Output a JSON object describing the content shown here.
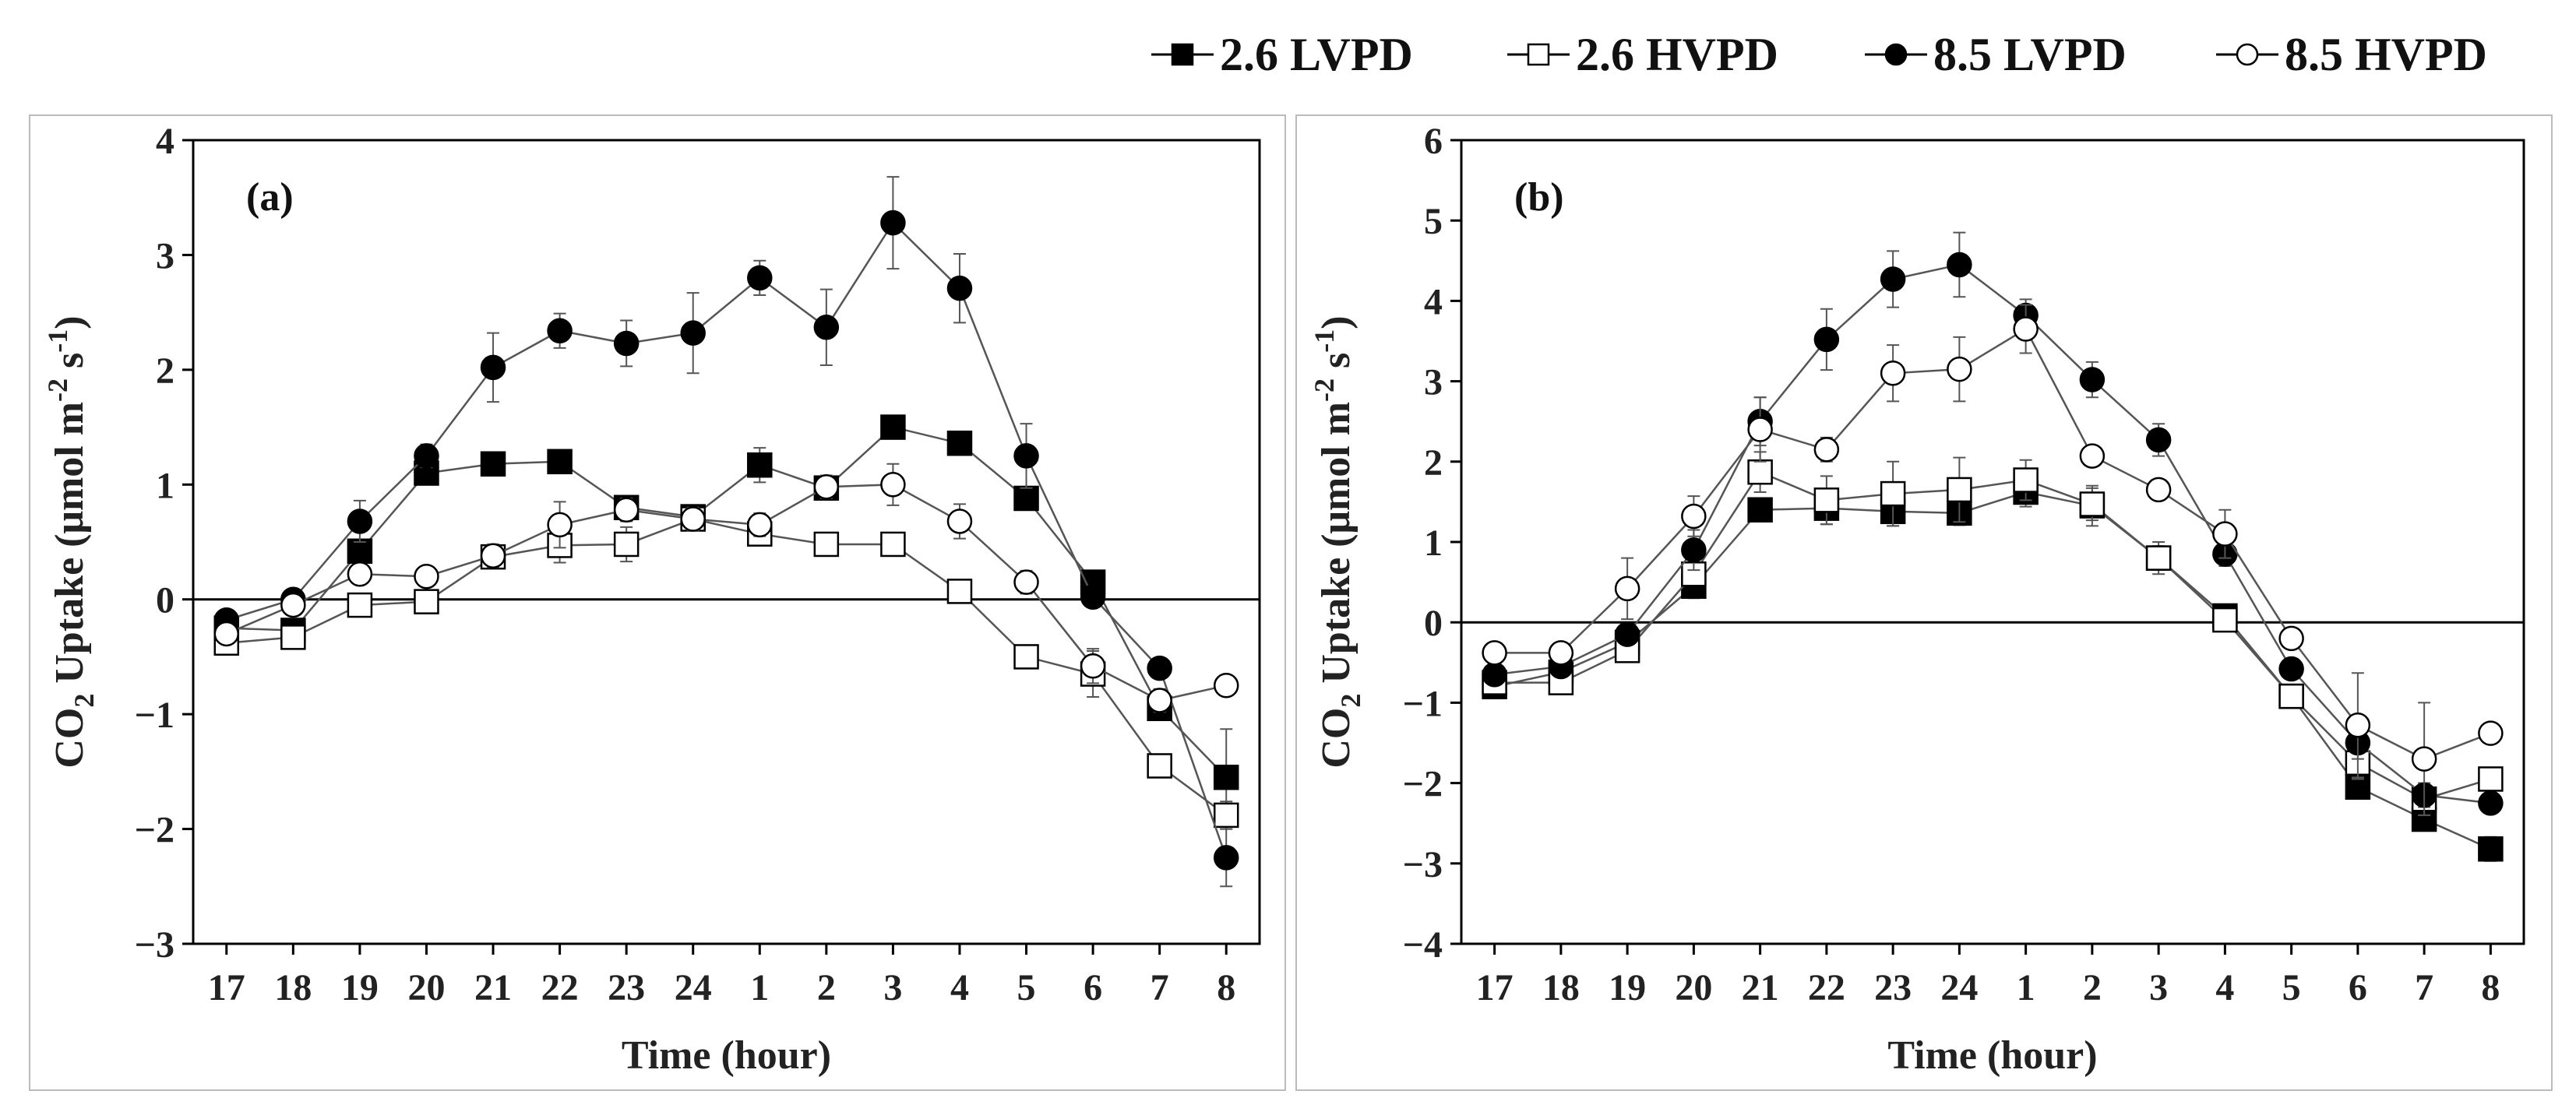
{
  "legend": [
    {
      "label": "2.6 LVPD",
      "marker": "square",
      "filled": true
    },
    {
      "label": "2.6 HVPD",
      "marker": "square",
      "filled": false
    },
    {
      "label": "8.5 LVPD",
      "marker": "circle",
      "filled": true
    },
    {
      "label": "8.5 HVPD",
      "marker": "circle",
      "filled": false
    }
  ],
  "colors": {
    "series": "#000000",
    "line": "#555555",
    "frame": "#000000",
    "panel_border": "#bbbbbb"
  },
  "chart_data": [
    {
      "type": "line",
      "panel_label": "(a)",
      "title": "",
      "xlabel": "Time (hour)",
      "ylabel_main": "CO",
      "ylabel_sub": "2",
      "ylabel_rest": " Uptake (μmol m",
      "ylabel_sup1": "-2",
      "ylabel_mid": " s",
      "ylabel_sup2": "-1",
      "ylabel_end": ")",
      "categories": [
        "17",
        "18",
        "19",
        "20",
        "21",
        "22",
        "23",
        "24",
        "1",
        "2",
        "3",
        "4",
        "5",
        "6",
        "7",
        "8"
      ],
      "ylim": [
        -3,
        4
      ],
      "yticks": [
        -3,
        -2,
        -1,
        0,
        1,
        2,
        3,
        4
      ],
      "ytick_labels": [
        "−3",
        "−2",
        "−1",
        "0",
        "1",
        "2",
        "3",
        "4"
      ],
      "series": [
        {
          "name": "2.6 LVPD",
          "values": [
            -0.25,
            -0.27,
            0.42,
            1.1,
            1.18,
            1.2,
            0.8,
            0.72,
            1.17,
            0.97,
            1.5,
            1.36,
            0.88,
            0.15,
            -0.95,
            -1.55
          ],
          "errors": [
            0.05,
            0.05,
            0.1,
            0.1,
            0.08,
            0.05,
            0.1,
            0.1,
            0.15,
            0.1,
            0.08,
            0.08,
            0.08,
            0.05,
            0.1,
            0.42
          ]
        },
        {
          "name": "2.6 HVPD",
          "values": [
            -0.38,
            -0.33,
            -0.05,
            -0.02,
            0.37,
            0.47,
            0.48,
            0.7,
            0.57,
            0.48,
            0.48,
            0.07,
            -0.5,
            -0.65,
            -1.45,
            -1.88
          ],
          "errors": [
            0.05,
            0.05,
            0.05,
            0.05,
            0.1,
            0.15,
            0.15,
            0.1,
            0.08,
            0.1,
            0.08,
            0.05,
            0.1,
            0.2,
            0.1,
            0.12
          ]
        },
        {
          "name": "8.5 LVPD",
          "values": [
            -0.18,
            0.0,
            0.68,
            1.25,
            2.02,
            2.34,
            2.23,
            2.32,
            2.8,
            2.37,
            3.28,
            2.71,
            1.25,
            0.02,
            -0.6,
            -2.25
          ],
          "errors": [
            0.05,
            0.05,
            0.18,
            0.1,
            0.3,
            0.15,
            0.2,
            0.35,
            0.15,
            0.33,
            0.4,
            0.3,
            0.28,
            0.05,
            0.05,
            0.25
          ]
        },
        {
          "name": "8.5 HVPD",
          "values": [
            -0.3,
            -0.05,
            0.22,
            0.2,
            0.38,
            0.65,
            0.78,
            0.7,
            0.65,
            0.98,
            1.0,
            0.68,
            0.15,
            -0.58,
            -0.88,
            -0.75
          ],
          "errors": [
            0.05,
            0.05,
            0.05,
            0.05,
            0.1,
            0.2,
            0.1,
            0.1,
            0.1,
            0.1,
            0.18,
            0.15,
            0.1,
            0.15,
            0.1,
            0.08
          ]
        }
      ]
    },
    {
      "type": "line",
      "panel_label": "(b)",
      "title": "",
      "xlabel": "Time (hour)",
      "ylabel_main": "CO",
      "ylabel_sub": "2",
      "ylabel_rest": " Uptake (μmol m",
      "ylabel_sup1": "-2",
      "ylabel_mid": " s",
      "ylabel_sup2": "-1",
      "ylabel_end": ")",
      "categories": [
        "17",
        "18",
        "19",
        "20",
        "21",
        "22",
        "23",
        "24",
        "1",
        "2",
        "3",
        "4",
        "5",
        "6",
        "7",
        "8"
      ],
      "ylim": [
        -4,
        6
      ],
      "yticks": [
        -4,
        -3,
        -2,
        -1,
        0,
        1,
        2,
        3,
        4,
        5,
        6
      ],
      "ytick_labels": [
        "−4",
        "−3",
        "−2",
        "−1",
        "0",
        "1",
        "2",
        "3",
        "4",
        "5",
        "6"
      ],
      "series": [
        {
          "name": "2.6 LVPD",
          "values": [
            -0.8,
            -0.62,
            -0.25,
            0.45,
            1.4,
            1.42,
            1.38,
            1.36,
            1.62,
            1.45,
            0.8,
            0.08,
            -0.92,
            -2.05,
            -2.45,
            -2.82
          ],
          "errors": [
            0.05,
            0.05,
            0.05,
            0.15,
            0.12,
            0.2,
            0.18,
            0.15,
            0.18,
            0.25,
            0.2,
            0.08,
            0.1,
            0.08,
            0.1,
            0.15
          ]
        },
        {
          "name": "2.6 HVPD",
          "values": [
            -0.75,
            -0.75,
            -0.35,
            0.6,
            1.87,
            1.52,
            1.6,
            1.65,
            1.77,
            1.47,
            0.8,
            0.03,
            -0.92,
            -1.75,
            -2.2,
            -1.95
          ],
          "errors": [
            0.05,
            0.05,
            0.05,
            0.1,
            0.25,
            0.3,
            0.4,
            0.4,
            0.25,
            0.2,
            0.15,
            0.05,
            0.1,
            0.2,
            0.2,
            0.1
          ]
        },
        {
          "name": "8.5 LVPD",
          "values": [
            -0.65,
            -0.55,
            -0.15,
            0.9,
            2.5,
            3.52,
            4.27,
            4.45,
            3.82,
            3.02,
            2.27,
            0.85,
            -0.58,
            -1.5,
            -2.15,
            -2.25
          ],
          "errors": [
            0.05,
            0.05,
            0.1,
            0.25,
            0.3,
            0.38,
            0.35,
            0.4,
            0.2,
            0.22,
            0.2,
            0.15,
            0.1,
            0.2,
            0.15,
            0.1
          ]
        },
        {
          "name": "8.5 HVPD",
          "values": [
            -0.38,
            -0.38,
            0.42,
            1.32,
            2.4,
            2.15,
            3.1,
            3.15,
            3.65,
            2.07,
            1.65,
            1.1,
            -0.2,
            -1.28,
            -1.7,
            -1.38
          ],
          "errors": [
            0.05,
            0.05,
            0.38,
            0.25,
            0.4,
            0.15,
            0.35,
            0.4,
            0.3,
            0.1,
            0.1,
            0.3,
            0.1,
            0.65,
            0.7,
            0.1
          ]
        }
      ]
    }
  ]
}
